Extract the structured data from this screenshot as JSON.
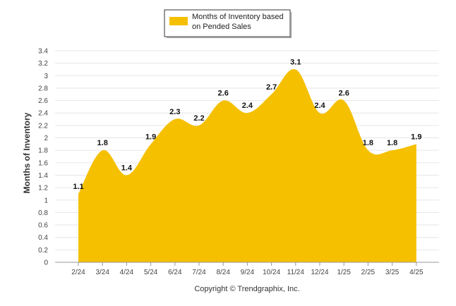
{
  "chart_data": {
    "type": "area",
    "categories": [
      "2/24",
      "3/24",
      "4/24",
      "5/24",
      "6/24",
      "7/24",
      "8/24",
      "9/24",
      "10/24",
      "11/24",
      "12/24",
      "1/25",
      "2/25",
      "3/25",
      "4/25"
    ],
    "series": [
      {
        "name": "Months of Inventory based on Pended Sales",
        "values": [
          1.1,
          1.8,
          1.4,
          1.9,
          2.3,
          2.2,
          2.6,
          2.4,
          2.7,
          3.1,
          2.4,
          2.6,
          1.8,
          1.8,
          1.9
        ]
      }
    ],
    "ylabel": "Months of Inventory",
    "xlabel": "",
    "ylim": [
      0,
      3.4
    ],
    "yticks": [
      "0",
      "0.2",
      "0.4",
      "0.6",
      "0.8",
      "1",
      "1.2",
      "1.4",
      "1.6",
      "1.8",
      "2",
      "2.2",
      "2.4",
      "2.6",
      "2.8",
      "3",
      "3.2",
      "3.4"
    ],
    "grid": true,
    "legend_position": "top-center",
    "colors": {
      "area": "#F5C000",
      "grid": "#e6e6e6",
      "axis": "#999999"
    }
  },
  "legend": {
    "line1": "Months of Inventory based",
    "line2": "on Pended Sales"
  },
  "footer": {
    "credit": "Copyright © Trendgraphix, Inc."
  }
}
